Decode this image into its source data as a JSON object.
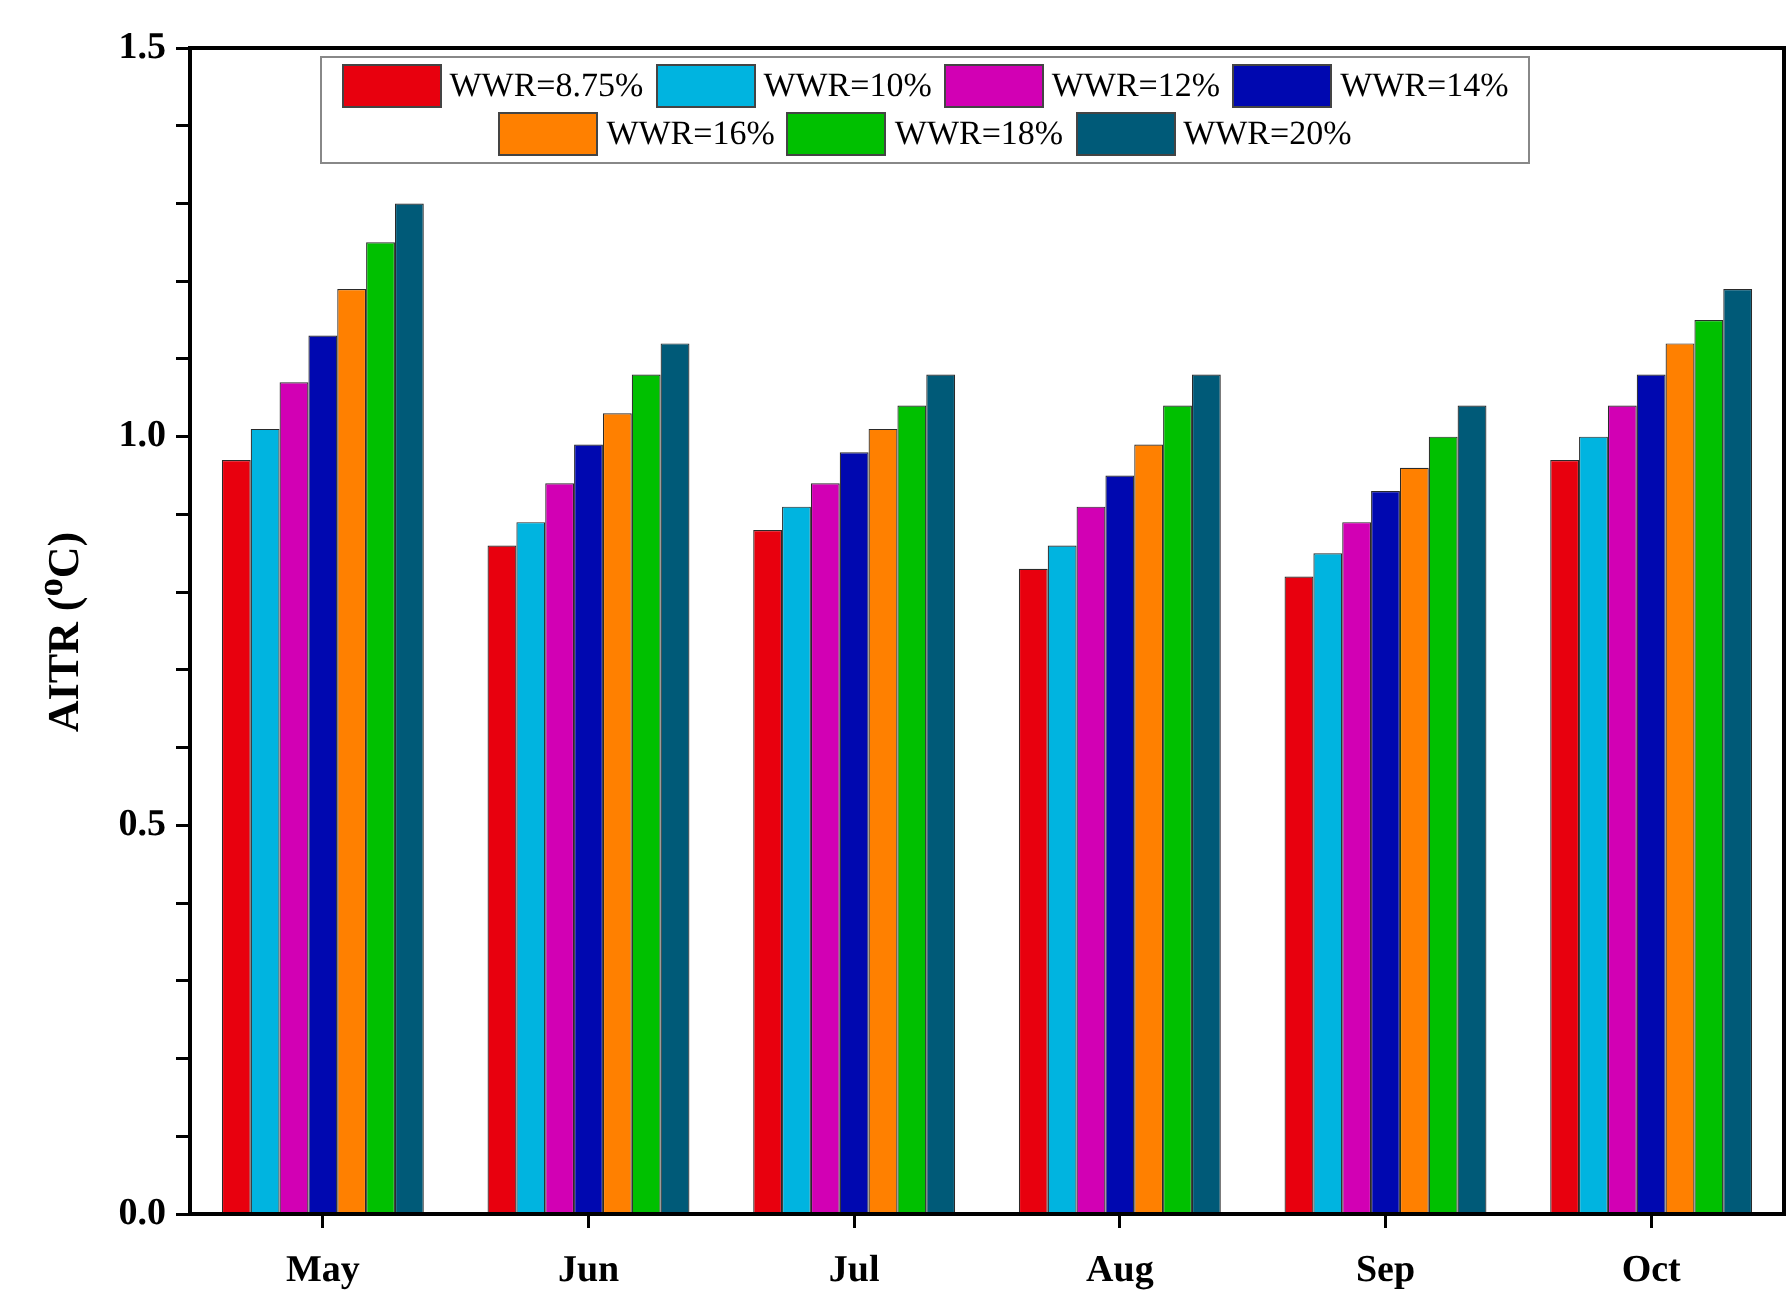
{
  "chart_data": {
    "type": "bar",
    "ylabel": "AITR ($^{o}$C)",
    "categories": [
      "May",
      "Jun",
      "Jul",
      "Aug",
      "Sep",
      "Oct"
    ],
    "ylim": [
      0,
      1.5
    ],
    "yticks": [
      {
        "value": 0,
        "label": "0.0"
      },
      {
        "value": 0.1,
        "label": null
      },
      {
        "value": 0.2,
        "label": null
      },
      {
        "value": 0.3,
        "label": null
      },
      {
        "value": 0.4,
        "label": null
      },
      {
        "value": 0.5,
        "label": "0.5"
      },
      {
        "value": 0.6,
        "label": null
      },
      {
        "value": 0.7,
        "label": null
      },
      {
        "value": 0.8,
        "label": null
      },
      {
        "value": 0.9,
        "label": null
      },
      {
        "value": 1.0,
        "label": "1.0"
      },
      {
        "value": 1.1,
        "label": null
      },
      {
        "value": 1.2,
        "label": null
      },
      {
        "value": 1.3,
        "label": null
      },
      {
        "value": 1.4,
        "label": null
      },
      {
        "value": 1.5,
        "label": "1.5"
      }
    ],
    "legend": "top",
    "series": [
      {
        "name": "WWR=8.75%",
        "color": "#e8000e",
        "values": [
          0.97,
          0.86,
          0.88,
          0.83,
          0.82,
          0.97
        ]
      },
      {
        "name": "WWR=10%",
        "color": "#00b4e0",
        "values": [
          1.01,
          0.89,
          0.91,
          0.86,
          0.85,
          1.0
        ]
      },
      {
        "name": "WWR=12%",
        "color": "#d200b4",
        "values": [
          1.07,
          0.94,
          0.94,
          0.91,
          0.89,
          1.04
        ]
      },
      {
        "name": "WWR=14%",
        "color": "#0008b0",
        "values": [
          1.13,
          0.99,
          0.98,
          0.95,
          0.93,
          1.08
        ]
      },
      {
        "name": "WWR=16%",
        "color": "#ff8000",
        "values": [
          1.19,
          1.03,
          1.01,
          0.99,
          0.96,
          1.12
        ]
      },
      {
        "name": "WWR=18%",
        "color": "#00c000",
        "values": [
          1.25,
          1.08,
          1.04,
          1.04,
          1.0,
          1.15
        ]
      },
      {
        "name": "WWR=20%",
        "color": "#005a78",
        "values": [
          1.3,
          1.12,
          1.08,
          1.08,
          1.04,
          1.19
        ]
      }
    ]
  }
}
